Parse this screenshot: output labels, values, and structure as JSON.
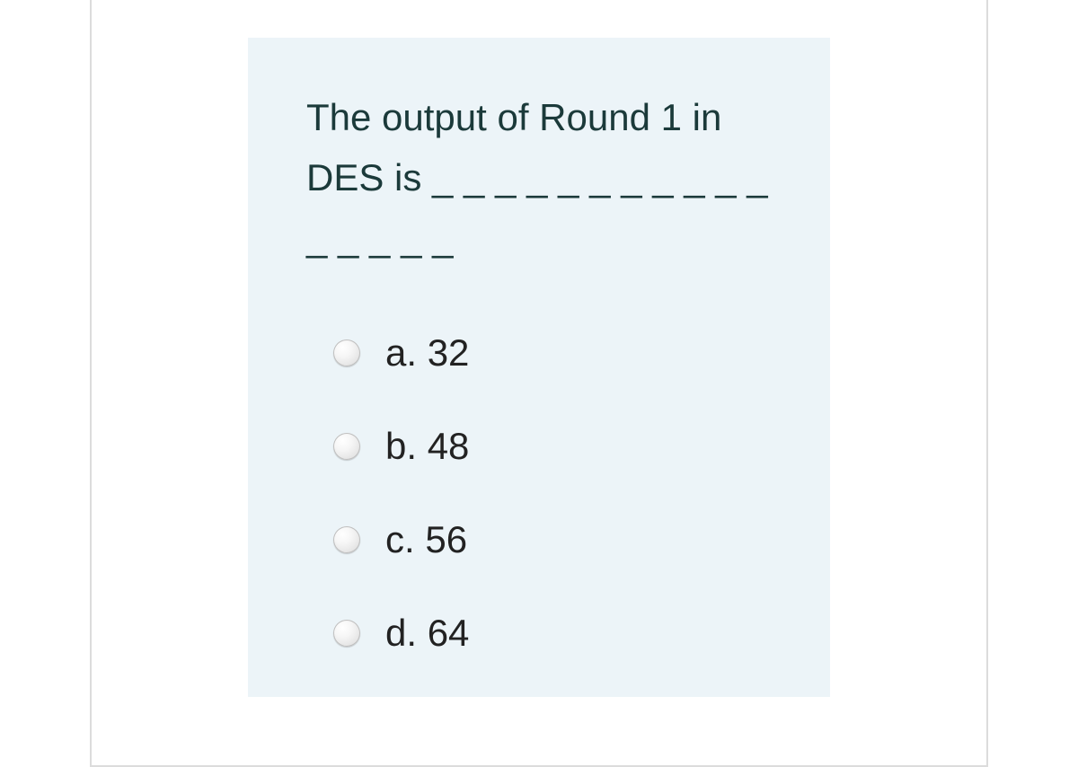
{
  "colors": {
    "card_bg": "#ecf4f8",
    "frame_border": "#dcdcdc",
    "question_text": "#1b3a3a",
    "option_text": "#222222"
  },
  "typography": {
    "question_fontsize_pt": 32,
    "option_fontsize_pt": 32
  },
  "question": {
    "text": "The output of Round 1 in DES is _ _ _ _ _ _ _ _ _ _ _ _ _ _ _ _",
    "options": [
      {
        "id": "a",
        "label": "a. 32"
      },
      {
        "id": "b",
        "label": "b. 48"
      },
      {
        "id": "c",
        "label": "c. 56"
      },
      {
        "id": "d",
        "label": "d. 64"
      }
    ]
  }
}
